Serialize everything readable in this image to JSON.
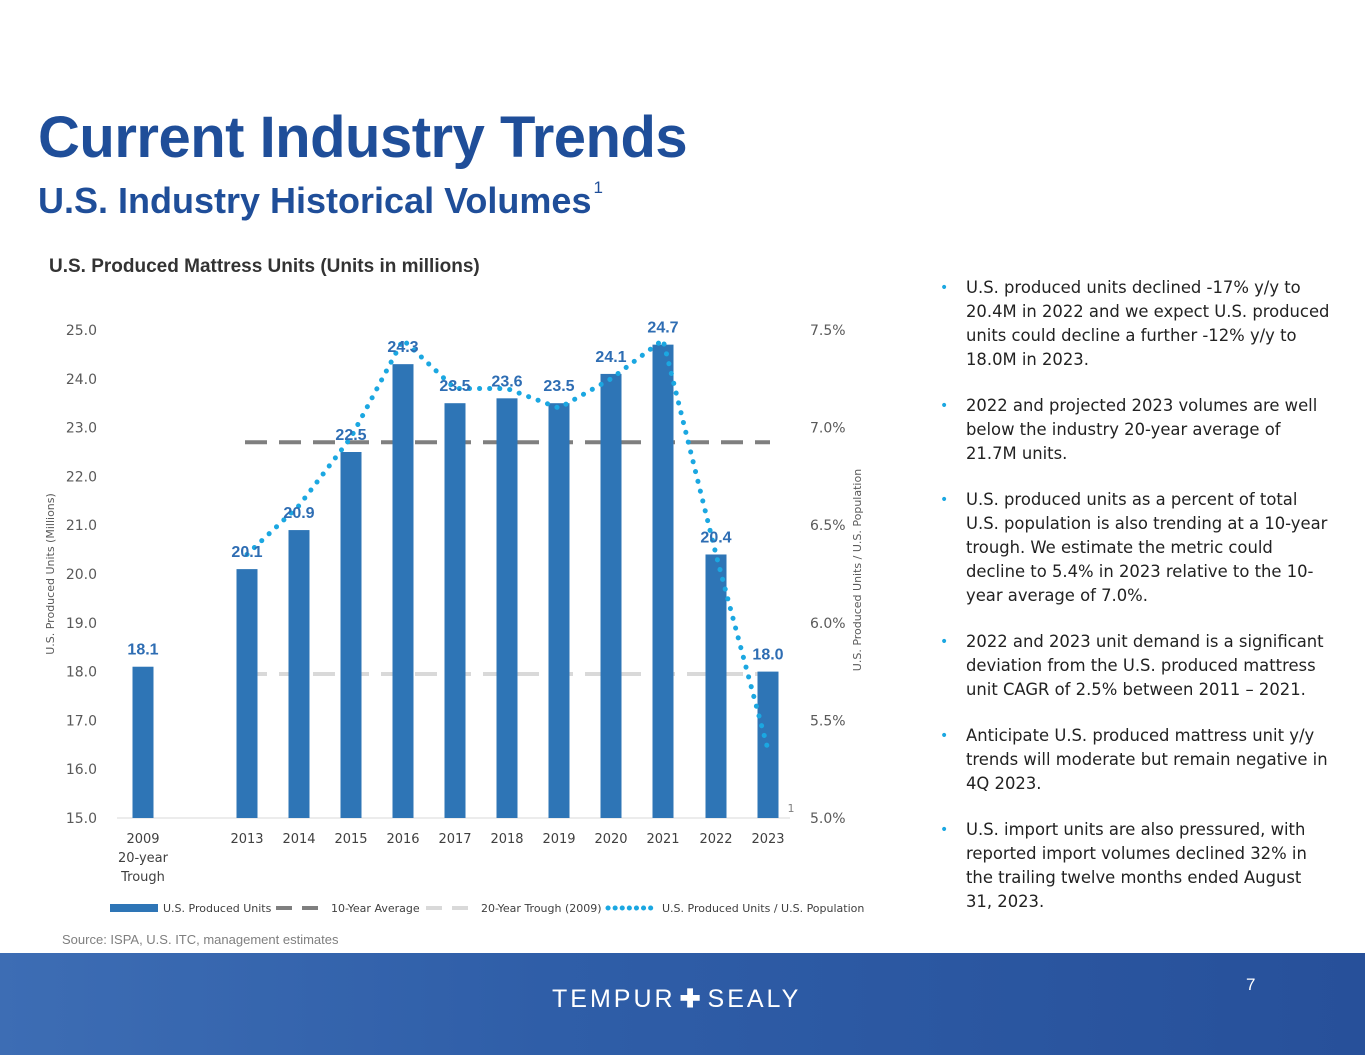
{
  "title": "Current Industry Trends",
  "subtitle": "U.S. Industry Historical Volumes",
  "subtitle_footnote": "1",
  "chart_heading": "U.S. Produced Mattress Units (Units in millions)",
  "chart_data": {
    "type": "bar",
    "categories": [
      "2009\n20-year\nTrough",
      "2013",
      "2014",
      "2015",
      "2016",
      "2017",
      "2018",
      "2019",
      "2020",
      "2021",
      "2022",
      "2023"
    ],
    "series": [
      {
        "name": "U.S. Produced Units",
        "type": "bar",
        "axis": "left",
        "color": "#2e75b6",
        "values": [
          18.1,
          20.1,
          20.9,
          22.5,
          24.3,
          23.5,
          23.6,
          23.5,
          24.1,
          24.7,
          20.4,
          18.0
        ],
        "labels": [
          "18.1",
          "20.1",
          "20.9",
          "22.5",
          "24.3",
          "23.5",
          "23.6",
          "23.5",
          "24.1",
          "24.7",
          "20.4",
          "18.0"
        ]
      },
      {
        "name": "10-Year Average",
        "type": "dashed-line",
        "axis": "left",
        "color": "#7f7f7f",
        "value": 22.7
      },
      {
        "name": "20-Year Trough (2009)",
        "type": "dashed-line",
        "axis": "left",
        "color": "#d9d9d9",
        "value": 17.95
      },
      {
        "name": "U.S. Produced Units / U.S. Population",
        "type": "dotted-line",
        "axis": "right",
        "color": "#1ba7e1",
        "values": [
          null,
          6.35,
          6.6,
          6.95,
          7.45,
          7.2,
          7.2,
          7.1,
          7.25,
          7.45,
          6.35,
          5.35
        ]
      }
    ],
    "y_left": {
      "label": "U.S. Produced Units (Millions)",
      "min": 15,
      "max": 25,
      "ticks": [
        "15.0",
        "16.0",
        "17.0",
        "18.0",
        "19.0",
        "20.0",
        "21.0",
        "22.0",
        "23.0",
        "24.0",
        "25.0"
      ]
    },
    "y_right": {
      "label": "U.S. Produced Units / U.S. Population",
      "min": 5.0,
      "max": 7.5,
      "ticks": [
        "5.0%",
        "5.5%",
        "6.0%",
        "6.5%",
        "7.0%",
        "7.5%"
      ]
    },
    "annotation": "1",
    "legend_position": "bottom",
    "grid": false
  },
  "bullets": [
    "U.S. produced units declined -17% y/y to 20.4M in 2022 and we expect U.S. produced units could decline a further -12% y/y to 18.0M in 2023.",
    "2022 and projected 2023 volumes are well below the industry 20-year average of 21.7M units.",
    "U.S. produced units as a percent of total U.S. population is also trending at a 10-year trough. We estimate the metric could decline to 5.4% in 2023 relative to the 10-year average of 7.0%.",
    "2022 and 2023 unit demand is a significant deviation from the U.S. produced mattress unit CAGR of 2.5% between 2011 – 2021.",
    "Anticipate U.S. produced mattress unit y/y trends will moderate but remain negative in 4Q 2023.",
    "U.S. import units are also pressured, with reported import volumes declined 32% in the trailing twelve months ended August 31, 2023."
  ],
  "bullet_glyph": "•",
  "source": "Source: ISPA, U.S. ITC, management estimates",
  "footer": {
    "logo_left": "TEMPUR",
    "logo_plus": "✚",
    "logo_right": "SEALY",
    "page_number": "7"
  }
}
